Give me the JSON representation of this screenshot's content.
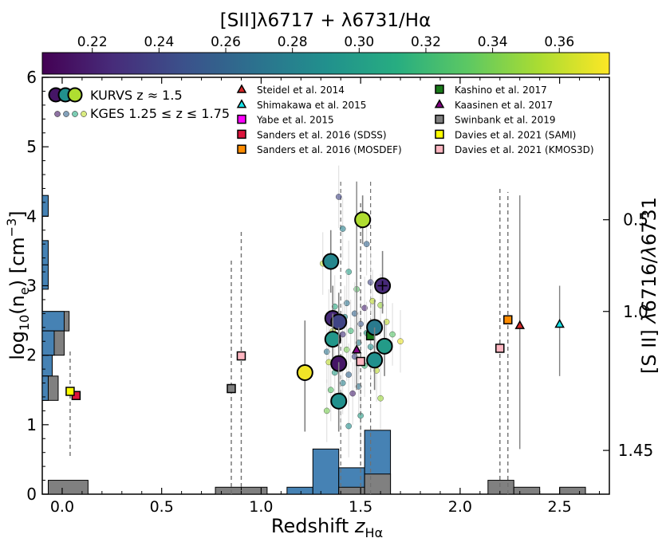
{
  "chart_data": {
    "type": "scatter",
    "xlabel": "Redshift z_Hα",
    "ylabel": "log10(ne) [cm−3]",
    "y2label": "[S II] λ6716/λ6731",
    "xlim": [
      -0.1,
      2.75
    ],
    "ylim": [
      0,
      6
    ],
    "x_ticks": [
      0.0,
      0.5,
      1.0,
      1.5,
      2.0,
      2.5
    ],
    "x_tick_labels": [
      "0.0",
      "0.5",
      "1.0",
      "1.5",
      "2.0",
      "2.5"
    ],
    "y_ticks": [
      0,
      1,
      2,
      3,
      4,
      5,
      6
    ],
    "y_tick_labels": [
      "0",
      "1",
      "2",
      "3",
      "4",
      "5",
      "6"
    ],
    "y2_ticks": [
      {
        "label": "0.5",
        "log_ne": 3.95
      },
      {
        "label": "1.0",
        "log_ne": 2.63
      },
      {
        "label": "1.45",
        "log_ne": 0.63
      }
    ],
    "colorbar": {
      "label": "[SII]λ6717 + λ6731/Hα",
      "range": [
        0.205,
        0.375
      ],
      "ticks": [
        0.22,
        0.24,
        0.26,
        0.28,
        0.3,
        0.32,
        0.34,
        0.36
      ],
      "tick_labels": [
        "0.22",
        "0.24",
        "0.26",
        "0.28",
        "0.30",
        "0.32",
        "0.34",
        "0.36"
      ],
      "colormap_stops": [
        "#440154",
        "#472c7a",
        "#3b518b",
        "#2c718e",
        "#21908d",
        "#27ad81",
        "#5cc863",
        "#aadc32",
        "#fde725"
      ]
    },
    "legend_left": [
      {
        "label": "KURVS z ≈ 1.5",
        "marker": "big-circles"
      },
      {
        "label": "KGES 1.25 ≤ z ≤ 1.75",
        "marker": "small-circles"
      }
    ],
    "legend_right": [
      {
        "label": "Steidel et al. 2014",
        "marker": "triangle",
        "color": "#d62728"
      },
      {
        "label": "Shimakawa et al. 2015",
        "marker": "triangle",
        "color": "#17e3e8"
      },
      {
        "label": "Yabe et al. 2015",
        "marker": "square",
        "color": "#ff00ff"
      },
      {
        "label": "Sanders et al. 2016 (SDSS)",
        "marker": "square",
        "color": "#dc143c"
      },
      {
        "label": "Sanders et al. 2016 (MOSDEF)",
        "marker": "square",
        "color": "#ff8c00"
      },
      {
        "label": "Kashino et al. 2017",
        "marker": "square",
        "color": "#1a7a1a"
      },
      {
        "label": "Kaasinen et al. 2017",
        "marker": "triangle",
        "color": "#800080"
      },
      {
        "label": "Swinbank et al. 2019",
        "marker": "square",
        "color": "#808080"
      },
      {
        "label": "Davies et al. 2021 (SAMI)",
        "marker": "square",
        "color": "#ffff00"
      },
      {
        "label": "Davies et al. 2021 (KMOS3D)",
        "marker": "square",
        "color": "#ffb6c1"
      }
    ],
    "kurvs": [
      {
        "x": 1.51,
        "y": 3.95,
        "c": 0.355,
        "err": [
          3.6,
          4.3
        ]
      },
      {
        "x": 1.35,
        "y": 3.35,
        "c": 0.283,
        "err": [
          2.9,
          3.8
        ]
      },
      {
        "x": 1.61,
        "y": 3.0,
        "c": 0.225,
        "err": [
          2.6,
          3.5
        ],
        "cross": true
      },
      {
        "x": 1.36,
        "y": 2.53,
        "c": 0.225,
        "err": [
          2.1,
          3.0
        ]
      },
      {
        "x": 1.39,
        "y": 2.48,
        "c": 0.24,
        "err": [
          2.1,
          2.9
        ]
      },
      {
        "x": 1.57,
        "y": 2.4,
        "c": 0.275,
        "err": [
          2.0,
          2.8
        ]
      },
      {
        "x": 1.36,
        "y": 2.23,
        "c": 0.295,
        "err": [
          1.8,
          2.6
        ]
      },
      {
        "x": 1.62,
        "y": 2.13,
        "c": 0.298,
        "err": [
          1.7,
          2.5
        ]
      },
      {
        "x": 1.57,
        "y": 1.93,
        "c": 0.29,
        "err": [
          1.5,
          2.4
        ]
      },
      {
        "x": 1.39,
        "y": 1.88,
        "c": 0.215,
        "err": [
          1.4,
          2.4
        ]
      },
      {
        "x": 1.22,
        "y": 1.75,
        "c": 0.372,
        "err": [
          0.9,
          2.5
        ]
      },
      {
        "x": 1.39,
        "y": 1.34,
        "c": 0.29,
        "err": [
          0.9,
          1.9
        ]
      }
    ],
    "kges": [
      {
        "x": 1.39,
        "y": 4.28,
        "c": 0.24
      },
      {
        "x": 1.31,
        "y": 3.32,
        "c": 0.36
      },
      {
        "x": 1.41,
        "y": 3.82,
        "c": 0.28
      },
      {
        "x": 1.53,
        "y": 3.6,
        "c": 0.26
      },
      {
        "x": 1.44,
        "y": 3.2,
        "c": 0.3
      },
      {
        "x": 1.55,
        "y": 3.05,
        "c": 0.24
      },
      {
        "x": 1.48,
        "y": 2.95,
        "c": 0.33
      },
      {
        "x": 1.56,
        "y": 2.78,
        "c": 0.36
      },
      {
        "x": 1.43,
        "y": 2.75,
        "c": 0.27
      },
      {
        "x": 1.37,
        "y": 2.7,
        "c": 0.31
      },
      {
        "x": 1.52,
        "y": 2.68,
        "c": 0.22
      },
      {
        "x": 1.6,
        "y": 2.72,
        "c": 0.35
      },
      {
        "x": 1.47,
        "y": 2.6,
        "c": 0.26
      },
      {
        "x": 1.34,
        "y": 2.5,
        "c": 0.33
      },
      {
        "x": 1.42,
        "y": 2.55,
        "c": 0.29
      },
      {
        "x": 1.5,
        "y": 2.45,
        "c": 0.25
      },
      {
        "x": 1.45,
        "y": 2.35,
        "c": 0.32
      },
      {
        "x": 1.63,
        "y": 2.48,
        "c": 0.36
      },
      {
        "x": 1.66,
        "y": 2.3,
        "c": 0.33
      },
      {
        "x": 1.7,
        "y": 2.2,
        "c": 0.37
      },
      {
        "x": 1.36,
        "y": 2.35,
        "c": 0.36
      },
      {
        "x": 1.41,
        "y": 2.3,
        "c": 0.23
      },
      {
        "x": 1.53,
        "y": 2.32,
        "c": 0.3
      },
      {
        "x": 1.49,
        "y": 2.18,
        "c": 0.28
      },
      {
        "x": 1.33,
        "y": 2.05,
        "c": 0.27
      },
      {
        "x": 1.43,
        "y": 2.08,
        "c": 0.34
      },
      {
        "x": 1.55,
        "y": 2.12,
        "c": 0.29
      },
      {
        "x": 1.47,
        "y": 1.98,
        "c": 0.24
      },
      {
        "x": 1.34,
        "y": 1.9,
        "c": 0.36
      },
      {
        "x": 1.52,
        "y": 1.85,
        "c": 0.32
      },
      {
        "x": 1.37,
        "y": 1.75,
        "c": 0.3
      },
      {
        "x": 1.44,
        "y": 1.72,
        "c": 0.26
      },
      {
        "x": 1.58,
        "y": 1.78,
        "c": 0.36
      },
      {
        "x": 1.41,
        "y": 1.6,
        "c": 0.28
      },
      {
        "x": 1.35,
        "y": 1.5,
        "c": 0.33
      },
      {
        "x": 1.46,
        "y": 1.45,
        "c": 0.22
      },
      {
        "x": 1.4,
        "y": 1.42,
        "c": 0.31
      },
      {
        "x": 1.49,
        "y": 1.55,
        "c": 0.27
      },
      {
        "x": 1.33,
        "y": 1.2,
        "c": 0.34
      },
      {
        "x": 1.5,
        "y": 1.13,
        "c": 0.3
      },
      {
        "x": 1.44,
        "y": 0.98,
        "c": 0.29
      },
      {
        "x": 1.6,
        "y": 1.38,
        "c": 0.35
      }
    ],
    "literature_points": [
      {
        "ref": "Steidel et al. 2014",
        "marker": "triangle",
        "color": "#d62728",
        "x": 2.3,
        "y": 2.43,
        "err": [
          0.65,
          4.3
        ],
        "err_style": "solid"
      },
      {
        "ref": "Shimakawa et al. 2015",
        "marker": "triangle",
        "color": "#17e3e8",
        "x": 2.5,
        "y": 2.45,
        "err": [
          1.7,
          3.0
        ],
        "err_style": "solid"
      },
      {
        "ref": "Sanders et al. 2016 (SDSS)",
        "marker": "square",
        "color": "#dc143c",
        "x": 0.07,
        "y": 1.42
      },
      {
        "ref": "Sanders et al. 2016 (MOSDEF)",
        "marker": "square",
        "color": "#ff8c00",
        "x": 2.24,
        "y": 2.51,
        "err": [
          0.0,
          4.35
        ],
        "err_style": "dashed"
      },
      {
        "ref": "Kashino et al. 2017",
        "marker": "square",
        "color": "#1a7a1a",
        "x": 1.55,
        "y": 2.28
      },
      {
        "ref": "Kaasinen et al. 2017",
        "marker": "triangle",
        "color": "#800080",
        "x": 1.48,
        "y": 2.08,
        "err": [
          1.5,
          4.5
        ],
        "err_style": "solid"
      },
      {
        "ref": "Swinbank et al. 2019",
        "marker": "square",
        "color": "#808080",
        "x": 0.85,
        "y": 1.52,
        "err": [
          0.0,
          3.4
        ],
        "err_style": "dashed"
      },
      {
        "ref": "Davies et al. 2021 (SAMI)",
        "marker": "square",
        "color": "#ffff00",
        "x": 0.04,
        "y": 1.48,
        "err": [
          0.55,
          2.1
        ],
        "err_style": "dashed"
      },
      {
        "ref": "Davies et al. 2021 (KMOS3D)",
        "marker": "square",
        "color": "#ffb6c1",
        "x": 0.9,
        "y": 1.99,
        "err": [
          0.0,
          3.8
        ],
        "err_style": "dashed"
      },
      {
        "ref": "Davies et al. 2021 (KMOS3D)",
        "marker": "square",
        "color": "#ffb6c1",
        "x": 1.5,
        "y": 1.91,
        "err": [
          0.0,
          4.2
        ],
        "err_style": "dashed"
      },
      {
        "ref": "Davies et al. 2021 (KMOS3D)",
        "marker": "square",
        "color": "#ffb6c1",
        "x": 2.2,
        "y": 2.1,
        "err": [
          0.0,
          4.4
        ],
        "err_style": "dashed"
      }
    ],
    "extra_dashed_lines": [
      {
        "x": 1.4,
        "err": [
          0.0,
          4.5
        ]
      },
      {
        "x": 1.55,
        "err": [
          0.0,
          4.5
        ]
      }
    ],
    "histogram_redshift": [
      {
        "x0": -0.07,
        "x1": 0.13,
        "h": 0.2,
        "color": "#808080"
      },
      {
        "x0": 0.77,
        "x1": 0.9,
        "h": 0.1,
        "color": "#808080"
      },
      {
        "x0": 0.9,
        "x1": 1.03,
        "h": 0.1,
        "color": "#808080"
      },
      {
        "x0": 1.13,
        "x1": 1.26,
        "h": 0.1,
        "color": "#4682b4"
      },
      {
        "x0": 1.26,
        "x1": 1.39,
        "h": 0.65,
        "color": "#4682b4"
      },
      {
        "x0": 1.39,
        "x1": 1.52,
        "h": 0.38,
        "color": "#4682b4"
      },
      {
        "x0": 1.39,
        "x1": 1.52,
        "h": 0.1,
        "color": "#808080"
      },
      {
        "x0": 1.52,
        "x1": 1.65,
        "h": 0.92,
        "color": "#4682b4"
      },
      {
        "x0": 1.52,
        "x1": 1.65,
        "h": 0.29,
        "color": "#808080"
      },
      {
        "x0": 2.14,
        "x1": 2.27,
        "h": 0.2,
        "color": "#808080"
      },
      {
        "x0": 2.27,
        "x1": 2.4,
        "h": 0.1,
        "color": "#808080"
      },
      {
        "x0": 2.5,
        "x1": 2.63,
        "h": 0.1,
        "color": "#808080"
      }
    ],
    "histogram_density": [
      {
        "y0": 4.0,
        "y1": 4.3,
        "w": 0.03,
        "color": "#4682b4"
      },
      {
        "y0": 3.3,
        "y1": 3.65,
        "w": 0.03,
        "color": "#4682b4"
      },
      {
        "y0": 2.95,
        "y1": 3.3,
        "w": 0.03,
        "color": "#4682b4"
      },
      {
        "y0": 2.35,
        "y1": 2.63,
        "w": 0.135,
        "color": "#808080"
      },
      {
        "y0": 2.35,
        "y1": 2.63,
        "w": 0.11,
        "color": "#4682b4"
      },
      {
        "y0": 2.0,
        "y1": 2.35,
        "w": 0.11,
        "color": "#808080"
      },
      {
        "y0": 2.0,
        "y1": 2.35,
        "w": 0.06,
        "color": "#4682b4"
      },
      {
        "y0": 1.7,
        "y1": 2.0,
        "w": 0.05,
        "color": "#4682b4"
      },
      {
        "y0": 1.35,
        "y1": 1.7,
        "w": 0.08,
        "color": "#808080"
      },
      {
        "y0": 1.35,
        "y1": 1.7,
        "w": 0.03,
        "color": "#4682b4"
      }
    ]
  }
}
